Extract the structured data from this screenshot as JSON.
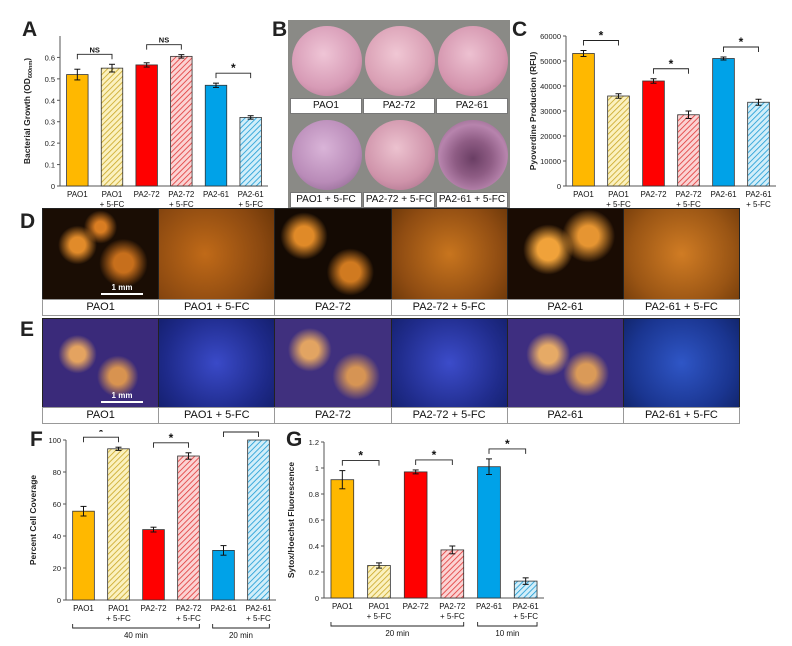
{
  "panels": {
    "A": "A",
    "B": "B",
    "C": "C",
    "D": "D",
    "E": "E",
    "F": "F",
    "G": "G"
  },
  "colors": {
    "orange": "#FFB800",
    "light_yellow": "#F6E58E",
    "red": "#FF0000",
    "pink": "#F28C8C",
    "blue": "#00A2E8",
    "light_blue": "#8FD3EE"
  },
  "panel_b": {
    "top_labels": [
      "PAO1",
      "PA2-72",
      "PA2-61"
    ],
    "bottom_labels": [
      "PAO1 + 5-FC",
      "PA2-72 + 5-FC",
      "PA2-61 + 5-FC"
    ]
  },
  "panel_d": {
    "labels": [
      "PAO1",
      "PAO1 + 5-FC",
      "PA2-72",
      "PA2-72 + 5-FC",
      "PA2-61",
      "PA2-61 + 5-FC"
    ],
    "scale": "1 mm"
  },
  "panel_e": {
    "labels": [
      "PAO1",
      "PAO1 + 5-FC",
      "PA2-72",
      "PA2-72 + 5-FC",
      "PA2-61",
      "PA2-61 + 5-FC"
    ],
    "scale": "1 mm"
  },
  "chart_data": [
    {
      "id": "A",
      "type": "bar",
      "ylabel": "Bacterial Growth (OD600nm)",
      "ylabel_main": "Bacterial Growth (OD",
      "ylabel_sub": "600nm",
      "ylabel_end": ")",
      "ylim": [
        0,
        0.7
      ],
      "yticks": [
        "0",
        "0.1",
        "0.2",
        "0.3",
        "0.4",
        "0.5",
        "0.6"
      ],
      "categories": [
        [
          "PAO1"
        ],
        [
          "PAO1",
          "+ 5-FC"
        ],
        [
          "PA2-72"
        ],
        [
          "PA2-72",
          "+ 5-FC"
        ],
        [
          "PA2-61"
        ],
        [
          "PA2-61",
          "+ 5-FC"
        ]
      ],
      "values": [
        0.52,
        0.55,
        0.565,
        0.605,
        0.47,
        0.32
      ],
      "errors": [
        0.025,
        0.018,
        0.01,
        0.008,
        0.01,
        0.008
      ],
      "styles": [
        "orange",
        "light_yellow",
        "red",
        "pink",
        "blue",
        "light_blue"
      ],
      "brackets": [
        {
          "from": 0,
          "to": 1,
          "label": "NS"
        },
        {
          "from": 2,
          "to": 3,
          "label": "NS"
        },
        {
          "from": 4,
          "to": 5,
          "label": "*"
        }
      ]
    },
    {
      "id": "C",
      "type": "bar",
      "ylabel": "Pyoverdine Production (RFU)",
      "ylim": [
        0,
        60000
      ],
      "yticks": [
        "0",
        "10000",
        "20000",
        "30000",
        "40000",
        "50000",
        "60000"
      ],
      "categories": [
        [
          "PAO1"
        ],
        [
          "PAO1",
          "+ 5-FC"
        ],
        [
          "PA2-72"
        ],
        [
          "PA2-72",
          "+ 5-FC"
        ],
        [
          "PA2-61"
        ],
        [
          "PA2-61",
          "+ 5-FC"
        ]
      ],
      "values": [
        53000,
        36000,
        42000,
        28500,
        51000,
        33500
      ],
      "errors": [
        1200,
        900,
        900,
        1500,
        600,
        1200
      ],
      "styles": [
        "orange",
        "light_yellow",
        "red",
        "pink",
        "blue",
        "light_blue"
      ],
      "brackets": [
        {
          "from": 0,
          "to": 1,
          "label": "*"
        },
        {
          "from": 2,
          "to": 3,
          "label": "*"
        },
        {
          "from": 4,
          "to": 5,
          "label": "*"
        }
      ]
    },
    {
      "id": "F",
      "type": "bar",
      "ylabel": "Percent Cell Coverage",
      "ylim": [
        0,
        100
      ],
      "yticks": [
        "0",
        "20",
        "40",
        "60",
        "80",
        "100"
      ],
      "categories": [
        [
          "PAO1"
        ],
        [
          "PAO1",
          "+ 5-FC"
        ],
        [
          "PA2-72"
        ],
        [
          "PA2-72",
          "+ 5-FC"
        ],
        [
          "PA2-61"
        ],
        [
          "PA2-61",
          "+ 5-FC"
        ]
      ],
      "values": [
        55.5,
        94.5,
        44,
        90,
        31,
        100
      ],
      "errors": [
        3,
        1,
        1.5,
        2,
        3,
        0
      ],
      "styles": [
        "orange",
        "light_yellow",
        "red",
        "pink",
        "blue",
        "light_blue"
      ],
      "brackets": [
        {
          "from": 0,
          "to": 1,
          "label": "*"
        },
        {
          "from": 2,
          "to": 3,
          "label": "*"
        },
        {
          "from": 4,
          "to": 5,
          "label": "*"
        }
      ],
      "groups": [
        {
          "from": 0,
          "to": 3,
          "label": "40 min"
        },
        {
          "from": 4,
          "to": 5,
          "label": "20 min"
        }
      ]
    },
    {
      "id": "G",
      "type": "bar",
      "ylabel": "Sytox/Hoechst Fluorescence",
      "ylim": [
        0,
        1.2
      ],
      "yticks": [
        "0",
        "0.2",
        "0.4",
        "0.6",
        "0.8",
        "1",
        "1.2"
      ],
      "categories": [
        [
          "PAO1"
        ],
        [
          "PAO1",
          "+ 5-FC"
        ],
        [
          "PA2-72"
        ],
        [
          "PA2-72",
          "+ 5-FC"
        ],
        [
          "PA2-61"
        ],
        [
          "PA2-61",
          "+ 5-FC"
        ]
      ],
      "values": [
        0.91,
        0.25,
        0.97,
        0.37,
        1.01,
        0.13
      ],
      "errors": [
        0.07,
        0.02,
        0.015,
        0.03,
        0.06,
        0.025
      ],
      "styles": [
        "orange",
        "light_yellow",
        "red",
        "pink",
        "blue",
        "light_blue"
      ],
      "brackets": [
        {
          "from": 0,
          "to": 1,
          "label": "*"
        },
        {
          "from": 2,
          "to": 3,
          "label": "*"
        },
        {
          "from": 4,
          "to": 5,
          "label": "*"
        }
      ],
      "groups": [
        {
          "from": 0,
          "to": 3,
          "label": "20 min"
        },
        {
          "from": 4,
          "to": 5,
          "label": "10 min"
        }
      ]
    }
  ]
}
